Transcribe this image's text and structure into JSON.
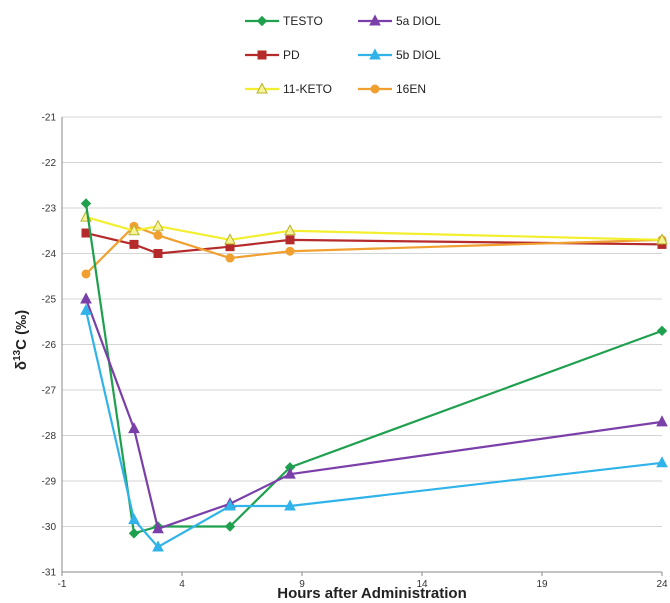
{
  "chart_data": {
    "type": "line",
    "xlabel": "Hours after Administration",
    "ylabel": {
      "prefix": "δ",
      "sup": "13",
      "suffix": "C (‰)"
    },
    "xlim": [
      -1,
      24
    ],
    "ylim": [
      -31,
      -21
    ],
    "xticks": [
      -1,
      4,
      9,
      14,
      19,
      24
    ],
    "yticks": [
      -21,
      -22,
      -23,
      -24,
      -25,
      -26,
      -27,
      -28,
      -29,
      -30,
      -31
    ],
    "grid": "horizontal",
    "legend_position": "top",
    "series": [
      {
        "name": "TESTO",
        "color": "#1fa04e",
        "marker": "diamond",
        "x": [
          0,
          2,
          3,
          6,
          8.5,
          24
        ],
        "y": [
          -22.9,
          -30.15,
          -30.0,
          -30.0,
          -28.7,
          -25.7
        ]
      },
      {
        "name": "5a DIOL",
        "color": "#7a3fa8",
        "marker": "triangle",
        "x": [
          0,
          2,
          3,
          6,
          8.5,
          24
        ],
        "y": [
          -25.0,
          -27.85,
          -30.05,
          -29.5,
          -28.85,
          -27.7
        ]
      },
      {
        "name": "PD",
        "color": "#b52a2a",
        "marker": "square",
        "x": [
          0,
          2,
          3,
          6,
          8.5,
          24
        ],
        "y": [
          -23.55,
          -23.8,
          -24.0,
          -23.85,
          -23.7,
          -23.8
        ]
      },
      {
        "name": "5b DIOL",
        "color": "#30b3e8",
        "marker": "triangle",
        "x": [
          0,
          2,
          3,
          6,
          8.5,
          24
        ],
        "y": [
          -25.25,
          -29.85,
          -30.45,
          -29.55,
          -29.55,
          -28.6
        ]
      },
      {
        "name": "11-KETO",
        "color": "#f2ef2e",
        "marker": "triangle-open",
        "x": [
          0,
          2,
          3,
          6,
          8.5,
          24
        ],
        "y": [
          -23.2,
          -23.5,
          -23.4,
          -23.7,
          -23.5,
          -23.7
        ]
      },
      {
        "name": "16EN",
        "color": "#f0a030",
        "marker": "circle",
        "x": [
          0,
          2,
          3,
          6,
          8.5,
          24
        ],
        "y": [
          -24.45,
          -23.4,
          -23.6,
          -24.1,
          -23.95,
          -23.7
        ]
      }
    ]
  }
}
